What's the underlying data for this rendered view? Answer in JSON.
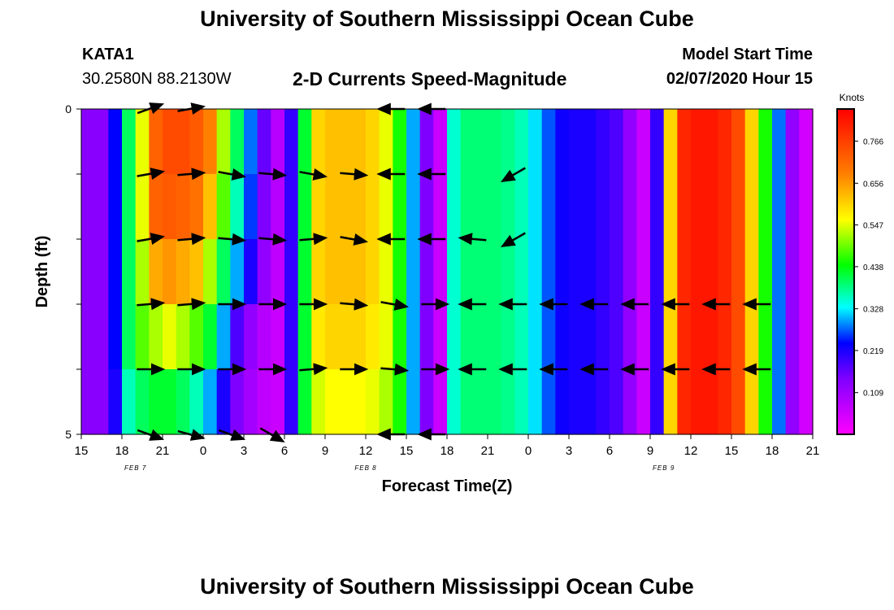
{
  "page": {
    "title": "University of Southern Mississippi Ocean Cube",
    "footer_title": "University of Southern Mississippi Ocean Cube",
    "station": "KATA1",
    "coordinates": "30.2580N 88.2130W",
    "subtitle": "2-D Currents Speed-Magnitude",
    "model_start_label": "Model Start Time",
    "model_start_value": "02/07/2020 Hour 15"
  },
  "chart_data": {
    "type": "heatmap",
    "title": "2-D Currents Speed-Magnitude",
    "xlabel": "Forecast Time(Z)",
    "ylabel": "Depth (ft)",
    "y_range": [
      0,
      5
    ],
    "y_tick_labels": [
      "0",
      "5"
    ],
    "y_minor_ticks": 4,
    "x_tick_labels": [
      "15",
      "18",
      "21",
      "0",
      "3",
      "6",
      "9",
      "12",
      "15",
      "18",
      "21",
      "0",
      "3",
      "6",
      "9",
      "12",
      "15",
      "18",
      "21"
    ],
    "x_hour_span": 54,
    "date_labels": [
      {
        "text": "FEB 7",
        "hour": 4
      },
      {
        "text": "FEB 8",
        "hour": 21
      },
      {
        "text": "FEB 9",
        "hour": 43
      }
    ],
    "colorbar": {
      "title": "Knots",
      "ticks": [
        "0.109",
        "0.219",
        "0.328",
        "0.438",
        "0.547",
        "0.656",
        "0.766"
      ],
      "min": 0.0,
      "max": 0.85
    },
    "depth_rows": 5,
    "time_columns": 54,
    "speed_profiles": [
      [
        0.13,
        0.13,
        0.24,
        0.4,
        0.55,
        0.72,
        0.75,
        0.75,
        0.73,
        0.68,
        0.52,
        0.4,
        0.28,
        0.16,
        0.08,
        0.2,
        0.42,
        0.6,
        0.62,
        0.62,
        0.62,
        0.6,
        0.55,
        0.45,
        0.3,
        0.14,
        0.06,
        0.35,
        0.39,
        0.39,
        0.39,
        0.38,
        0.36,
        0.32,
        0.27,
        0.23,
        0.22,
        0.22,
        0.2,
        0.18,
        0.12,
        0.06,
        0.2,
        0.6,
        0.8,
        0.82,
        0.82,
        0.8,
        0.75,
        0.6,
        0.45,
        0.28,
        0.12,
        0.05
      ],
      [
        0.13,
        0.13,
        0.24,
        0.4,
        0.55,
        0.72,
        0.73,
        0.72,
        0.7,
        0.62,
        0.48,
        0.36,
        0.26,
        0.14,
        0.08,
        0.2,
        0.42,
        0.6,
        0.62,
        0.62,
        0.62,
        0.6,
        0.55,
        0.45,
        0.3,
        0.14,
        0.06,
        0.35,
        0.39,
        0.39,
        0.39,
        0.38,
        0.36,
        0.32,
        0.27,
        0.23,
        0.22,
        0.22,
        0.2,
        0.18,
        0.12,
        0.06,
        0.2,
        0.6,
        0.8,
        0.82,
        0.82,
        0.8,
        0.75,
        0.6,
        0.45,
        0.28,
        0.12,
        0.05
      ],
      [
        0.13,
        0.13,
        0.24,
        0.4,
        0.52,
        0.64,
        0.66,
        0.64,
        0.62,
        0.52,
        0.4,
        0.3,
        0.22,
        0.12,
        0.07,
        0.2,
        0.42,
        0.6,
        0.62,
        0.62,
        0.62,
        0.6,
        0.55,
        0.45,
        0.3,
        0.14,
        0.06,
        0.35,
        0.39,
        0.39,
        0.39,
        0.38,
        0.36,
        0.32,
        0.27,
        0.23,
        0.22,
        0.22,
        0.2,
        0.18,
        0.12,
        0.06,
        0.2,
        0.6,
        0.8,
        0.82,
        0.82,
        0.8,
        0.75,
        0.6,
        0.45,
        0.28,
        0.12,
        0.05
      ],
      [
        0.13,
        0.13,
        0.24,
        0.4,
        0.48,
        0.52,
        0.55,
        0.52,
        0.48,
        0.42,
        0.3,
        0.18,
        0.12,
        0.08,
        0.06,
        0.2,
        0.42,
        0.58,
        0.6,
        0.6,
        0.6,
        0.58,
        0.55,
        0.45,
        0.3,
        0.14,
        0.06,
        0.35,
        0.39,
        0.39,
        0.39,
        0.38,
        0.36,
        0.32,
        0.27,
        0.23,
        0.22,
        0.22,
        0.2,
        0.18,
        0.12,
        0.06,
        0.2,
        0.6,
        0.8,
        0.82,
        0.82,
        0.8,
        0.75,
        0.6,
        0.45,
        0.28,
        0.12,
        0.05
      ],
      [
        0.13,
        0.13,
        0.22,
        0.36,
        0.4,
        0.42,
        0.42,
        0.4,
        0.36,
        0.3,
        0.22,
        0.14,
        0.1,
        0.07,
        0.06,
        0.2,
        0.42,
        0.54,
        0.56,
        0.56,
        0.56,
        0.55,
        0.52,
        0.45,
        0.3,
        0.14,
        0.06,
        0.35,
        0.39,
        0.39,
        0.39,
        0.38,
        0.36,
        0.32,
        0.27,
        0.23,
        0.22,
        0.22,
        0.2,
        0.18,
        0.12,
        0.06,
        0.2,
        0.6,
        0.8,
        0.82,
        0.82,
        0.8,
        0.75,
        0.6,
        0.45,
        0.28,
        0.12,
        0.05
      ]
    ],
    "vector_hours": [
      5,
      8,
      11,
      14,
      17,
      20,
      23,
      26,
      29,
      32,
      35,
      38,
      41,
      44,
      47,
      50
    ],
    "vector_depths": [
      0,
      1,
      2,
      3,
      4,
      5
    ],
    "vectors_deg": [
      [
        -20,
        -10,
        null,
        null,
        null,
        null,
        180,
        180,
        null,
        null,
        null,
        null,
        null,
        null,
        null,
        null
      ],
      [
        -10,
        -5,
        10,
        5,
        10,
        5,
        180,
        180,
        null,
        150,
        null,
        null,
        null,
        null,
        null,
        null
      ],
      [
        -10,
        -5,
        5,
        5,
        -5,
        10,
        180,
        180,
        185,
        150,
        null,
        null,
        null,
        null,
        null,
        null
      ],
      [
        -5,
        -5,
        0,
        0,
        0,
        5,
        10,
        0,
        180,
        180,
        180,
        180,
        180,
        180,
        180,
        180
      ],
      [
        0,
        0,
        0,
        0,
        -5,
        0,
        5,
        0,
        180,
        180,
        180,
        180,
        180,
        180,
        180,
        180
      ],
      [
        20,
        15,
        20,
        30,
        null,
        null,
        180,
        180,
        null,
        null,
        null,
        null,
        null,
        null,
        null,
        null
      ]
    ]
  }
}
